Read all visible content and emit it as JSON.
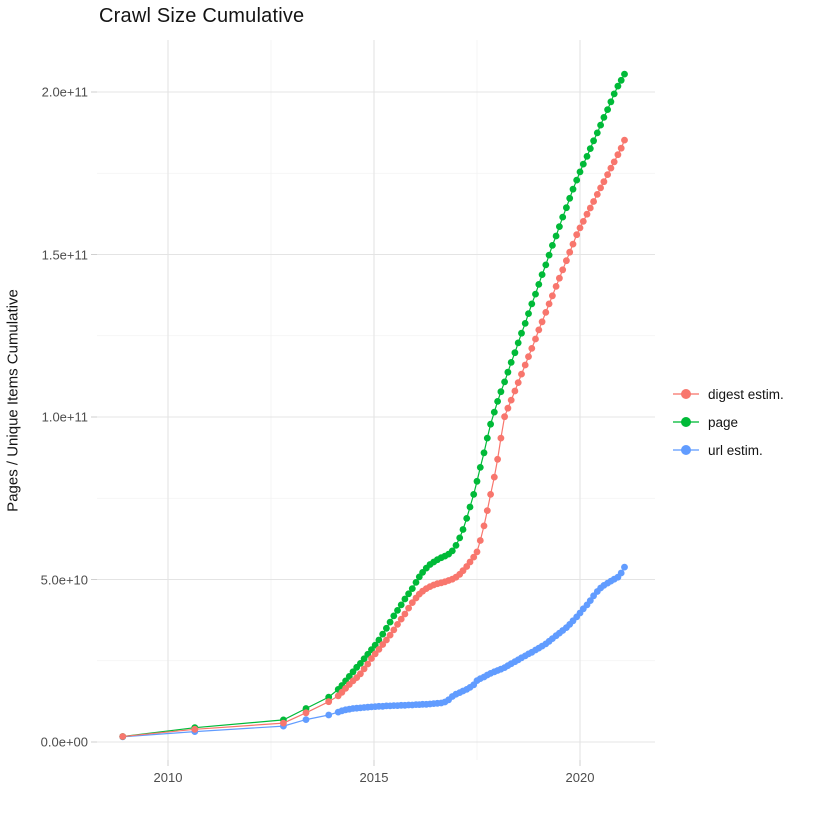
{
  "chart_data": {
    "type": "scatter",
    "subtype": "points-with-lines",
    "title": "Crawl Size Cumulative",
    "xlabel": "",
    "ylabel": "Pages / Unique Items Cumulative",
    "grid": "on",
    "legend_position": "right",
    "y_unit": "items (values below in billions, 1e9)",
    "ylim_e9": [
      -5.5,
      216
    ],
    "xlim": [
      2008.28,
      2021.82
    ],
    "x_axis": {
      "tick_labels": [
        "2010",
        "2015",
        "2020"
      ],
      "tick_years": [
        2010,
        2015,
        2020
      ],
      "minor_years": [
        2012.5,
        2017.5
      ]
    },
    "y_axis": {
      "tick_labels": [
        "0.0e+00",
        "5.0e+10",
        "1.0e+11",
        "1.5e+11",
        "2.0e+11"
      ],
      "tick_values_e9": [
        0,
        50,
        100,
        150,
        200
      ],
      "minor_values_e9": [
        25,
        75,
        125,
        175
      ]
    },
    "x_years": [
      2008.9,
      2010.65,
      2012.8,
      2013.35,
      2013.9,
      2014.13,
      2014.22,
      2014.31,
      2014.4,
      2014.49,
      2014.58,
      2014.67,
      2014.76,
      2014.85,
      2014.94,
      2015.03,
      2015.12,
      2015.21,
      2015.3,
      2015.39,
      2015.48,
      2015.57,
      2015.66,
      2015.75,
      2015.84,
      2015.93,
      2016.02,
      2016.1,
      2016.18,
      2016.27,
      2016.36,
      2016.45,
      2016.54,
      2016.63,
      2016.72,
      2016.81,
      2016.9,
      2016.99,
      2017.08,
      2017.16,
      2017.25,
      2017.33,
      2017.42,
      2017.5,
      2017.58,
      2017.67,
      2017.75,
      2017.83,
      2017.92,
      2018.0,
      2018.08,
      2018.17,
      2018.25,
      2018.33,
      2018.42,
      2018.5,
      2018.58,
      2018.67,
      2018.75,
      2018.83,
      2018.92,
      2019.0,
      2019.08,
      2019.17,
      2019.25,
      2019.33,
      2019.42,
      2019.5,
      2019.58,
      2019.67,
      2019.75,
      2019.83,
      2019.92,
      2020.0,
      2020.08,
      2020.17,
      2020.25,
      2020.33,
      2020.42,
      2020.5,
      2020.58,
      2020.67,
      2020.75,
      2020.83,
      2020.92,
      2021.0,
      2021.08
    ],
    "series": [
      {
        "name": "digest estim.",
        "color": "#F8766D",
        "values_e9": [
          1.7,
          3.9,
          5.8,
          9.0,
          12.4,
          14.2,
          15.3,
          16.5,
          17.7,
          18.8,
          19.8,
          21.0,
          22.5,
          24.0,
          25.7,
          27.1,
          28.5,
          30.0,
          31.4,
          32.9,
          34.5,
          36.2,
          37.8,
          39.4,
          41.2,
          42.9,
          44.3,
          45.5,
          46.4,
          47.2,
          47.8,
          48.3,
          48.7,
          49.0,
          49.3,
          49.7,
          50.1,
          50.7,
          51.6,
          52.7,
          54.0,
          55.4,
          56.9,
          58.5,
          62.0,
          66.5,
          71.2,
          76.2,
          81.5,
          87.0,
          93.5,
          100.1,
          102.7,
          105.2,
          108.0,
          110.6,
          113.2,
          116.0,
          118.6,
          121.1,
          124.0,
          126.8,
          129.3,
          132.2,
          134.8,
          137.3,
          140.2,
          142.7,
          145.3,
          148.1,
          150.7,
          153.2,
          156.1,
          158.2,
          160.2,
          162.4,
          164.3,
          166.3,
          168.5,
          170.5,
          172.4,
          174.6,
          176.6,
          178.5,
          180.7,
          182.7,
          185.2
        ]
      },
      {
        "name": "page",
        "color": "#00BA38",
        "values_e9": [
          1.7,
          4.4,
          6.8,
          10.3,
          13.8,
          16.2,
          17.4,
          18.8,
          20.2,
          21.6,
          23.0,
          24.2,
          25.6,
          27.0,
          28.4,
          29.8,
          31.4,
          33.2,
          35.0,
          36.9,
          38.8,
          40.5,
          42.2,
          44.0,
          45.6,
          47.2,
          49.1,
          50.8,
          52.2,
          53.5,
          54.6,
          55.4,
          56.1,
          56.7,
          57.2,
          57.8,
          58.8,
          60.5,
          62.8,
          65.4,
          68.8,
          72.3,
          76.2,
          80.2,
          84.5,
          89.0,
          93.5,
          97.8,
          101.5,
          104.8,
          107.8,
          110.8,
          113.8,
          116.8,
          119.8,
          122.8,
          125.8,
          128.8,
          131.8,
          134.8,
          137.8,
          140.8,
          143.8,
          146.8,
          149.8,
          152.8,
          155.7,
          158.6,
          161.5,
          164.4,
          167.3,
          170.1,
          172.9,
          175.4,
          177.8,
          180.2,
          182.6,
          185.0,
          187.4,
          189.8,
          192.2,
          194.6,
          197.0,
          199.4,
          201.8,
          203.6,
          205.5
        ]
      },
      {
        "name": "url estim.",
        "color": "#619CFF",
        "values_e9": [
          1.6,
          3.2,
          4.9,
          6.9,
          8.3,
          9.2,
          9.6,
          9.9,
          10.1,
          10.3,
          10.4,
          10.5,
          10.6,
          10.7,
          10.8,
          10.9,
          11.0,
          11.0,
          11.1,
          11.1,
          11.2,
          11.2,
          11.3,
          11.3,
          11.4,
          11.4,
          11.5,
          11.5,
          11.6,
          11.6,
          11.7,
          11.8,
          11.9,
          12.0,
          12.3,
          13.0,
          14.0,
          14.7,
          15.2,
          15.7,
          16.2,
          16.8,
          17.6,
          18.9,
          19.5,
          20.0,
          20.6,
          21.1,
          21.6,
          22.0,
          22.4,
          22.9,
          23.5,
          24.1,
          24.7,
          25.3,
          25.9,
          26.5,
          27.1,
          27.6,
          28.3,
          28.9,
          29.5,
          30.2,
          31.0,
          31.8,
          32.7,
          33.5,
          34.3,
          35.2,
          36.2,
          37.3,
          38.5,
          39.7,
          41.0,
          42.2,
          43.5,
          45.0,
          46.3,
          47.4,
          48.2,
          48.9,
          49.5,
          50.1,
          50.7,
          52.0,
          53.8
        ]
      }
    ]
  }
}
